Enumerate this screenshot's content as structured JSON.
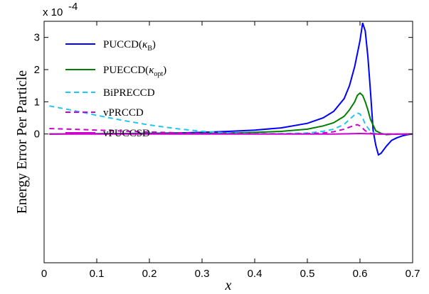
{
  "chart_data": {
    "type": "line",
    "xlabel": "x",
    "ylabel": "Energy Error Per Particle",
    "y_multiplier_label": "x 10",
    "y_multiplier_exp": "-4",
    "xlim": [
      0,
      0.7
    ],
    "ylim": [
      -4,
      3.5
    ],
    "x_ticks": [
      0,
      0.1,
      0.2,
      0.3,
      0.4,
      0.5,
      0.6,
      0.7
    ],
    "x_tick_labels": [
      "0",
      "0.1",
      "0.2",
      "0.3",
      "0.4",
      "0.5",
      "0.6",
      "0.7"
    ],
    "y_ticks": [
      0,
      1,
      2,
      3
    ],
    "y_tick_labels": [
      "0",
      "1",
      "2",
      "3"
    ],
    "grid": false,
    "legend_position": "top-left",
    "series": [
      {
        "name": "PUCCD(κB)",
        "name_main": "PUCCD(",
        "name_symbol": "κ",
        "name_sub": "B",
        "name_close": ")",
        "color": "#0000ff",
        "style": "solid",
        "x": [
          0.01,
          0.05,
          0.1,
          0.15,
          0.2,
          0.25,
          0.3,
          0.35,
          0.4,
          0.45,
          0.5,
          0.53,
          0.55,
          0.57,
          0.58,
          0.59,
          0.6,
          0.605,
          0.61,
          0.615,
          0.62,
          0.625,
          0.63,
          0.635,
          0.64,
          0.65,
          0.66,
          0.67,
          0.68,
          0.69,
          0.7
        ],
        "y": [
          0.0,
          0.005,
          0.01,
          0.015,
          0.02,
          0.03,
          0.05,
          0.08,
          0.12,
          0.19,
          0.33,
          0.5,
          0.7,
          1.1,
          1.5,
          2.1,
          2.9,
          3.45,
          3.2,
          2.4,
          1.3,
          0.1,
          -0.35,
          -0.65,
          -0.6,
          -0.38,
          -0.2,
          -0.12,
          -0.06,
          -0.02,
          0.0
        ]
      },
      {
        "name": "PUECCD(κopt)",
        "name_main": "PUECCD(",
        "name_symbol": "κ",
        "name_sub": "opt",
        "name_close": ")",
        "color": "#008000",
        "style": "solid",
        "x": [
          0.01,
          0.1,
          0.2,
          0.3,
          0.35,
          0.4,
          0.45,
          0.5,
          0.53,
          0.55,
          0.57,
          0.58,
          0.59,
          0.595,
          0.6,
          0.605,
          0.61,
          0.615,
          0.62,
          0.63,
          0.64,
          0.65,
          0.66,
          0.7
        ],
        "y": [
          0.0,
          0.005,
          0.01,
          0.02,
          0.03,
          0.05,
          0.08,
          0.15,
          0.25,
          0.35,
          0.55,
          0.75,
          1.0,
          1.2,
          1.27,
          1.2,
          1.0,
          0.75,
          0.45,
          0.1,
          0.02,
          -0.02,
          -0.01,
          0.0
        ]
      },
      {
        "name": "BiPRECCD",
        "color": "#1ec8f0",
        "style": "dashed",
        "x": [
          0.01,
          0.05,
          0.1,
          0.15,
          0.2,
          0.25,
          0.3,
          0.35,
          0.4,
          0.45,
          0.5,
          0.53,
          0.55,
          0.57,
          0.58,
          0.59,
          0.595,
          0.6,
          0.605,
          0.61,
          0.62,
          0.63,
          0.64,
          0.65,
          0.7
        ],
        "y": [
          0.87,
          0.75,
          0.58,
          0.42,
          0.28,
          0.17,
          0.08,
          0.03,
          0.01,
          0.01,
          0.03,
          0.08,
          0.15,
          0.3,
          0.45,
          0.6,
          0.65,
          0.62,
          0.5,
          0.3,
          0.08,
          0.01,
          0.0,
          -0.01,
          0.0
        ]
      },
      {
        "name": "vPRCCD",
        "color": "#cc00cc",
        "style": "dashed",
        "x": [
          0.01,
          0.05,
          0.1,
          0.15,
          0.2,
          0.25,
          0.3,
          0.35,
          0.4,
          0.45,
          0.5,
          0.53,
          0.55,
          0.57,
          0.58,
          0.59,
          0.595,
          0.6,
          0.605,
          0.61,
          0.62,
          0.63,
          0.7
        ],
        "y": [
          0.17,
          0.15,
          0.12,
          0.09,
          0.06,
          0.04,
          0.02,
          0.01,
          0.005,
          0.003,
          0.01,
          0.03,
          0.07,
          0.15,
          0.21,
          0.27,
          0.29,
          0.25,
          0.18,
          0.1,
          0.02,
          0.0,
          0.0
        ]
      },
      {
        "name": "vPUCCSD",
        "color": "#cc00cc",
        "style": "solid",
        "x": [
          0.01,
          0.1,
          0.2,
          0.3,
          0.4,
          0.5,
          0.55,
          0.58,
          0.6,
          0.61,
          0.62,
          0.63,
          0.65,
          0.7
        ],
        "y": [
          0.0,
          0.0,
          0.0,
          0.0,
          0.0,
          0.0,
          0.0,
          0.005,
          0.015,
          0.01,
          0.005,
          0.0,
          0.0,
          0.0
        ]
      }
    ]
  }
}
